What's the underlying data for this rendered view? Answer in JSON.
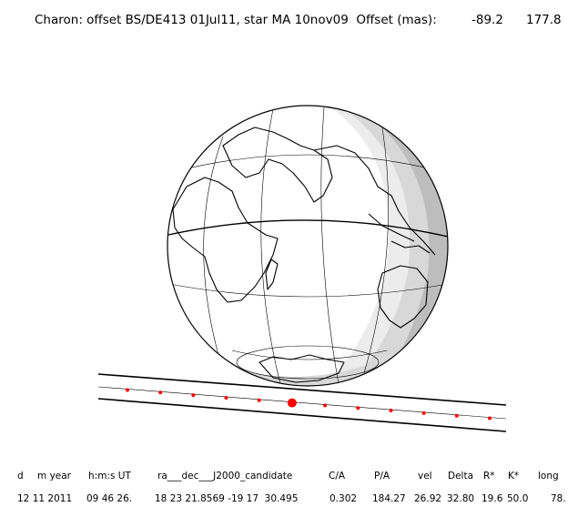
{
  "header": {
    "title": "Charon: offset BS/DE413 01Jul11, star MA 10nov09  Offset (mas):",
    "offset_ra": "-89.2",
    "offset_dec": "177.8"
  },
  "track": {
    "dot_count": 12,
    "highlight_index": 5,
    "dot_color": "#ff0000"
  },
  "table": {
    "headers": [
      "d",
      "m year",
      "h:m:s UT",
      "ra___dec___J2000_candidate",
      "C/A",
      "P/A",
      "vel",
      "Delta",
      "R*",
      "K*",
      "long"
    ],
    "values": [
      "12 11 2011",
      "09 46 26.",
      "18 23 21.8569 -19 17  30.495",
      "0.302",
      "184.27",
      "26.92",
      "32.80",
      "19.6",
      "50.0",
      "78."
    ]
  }
}
